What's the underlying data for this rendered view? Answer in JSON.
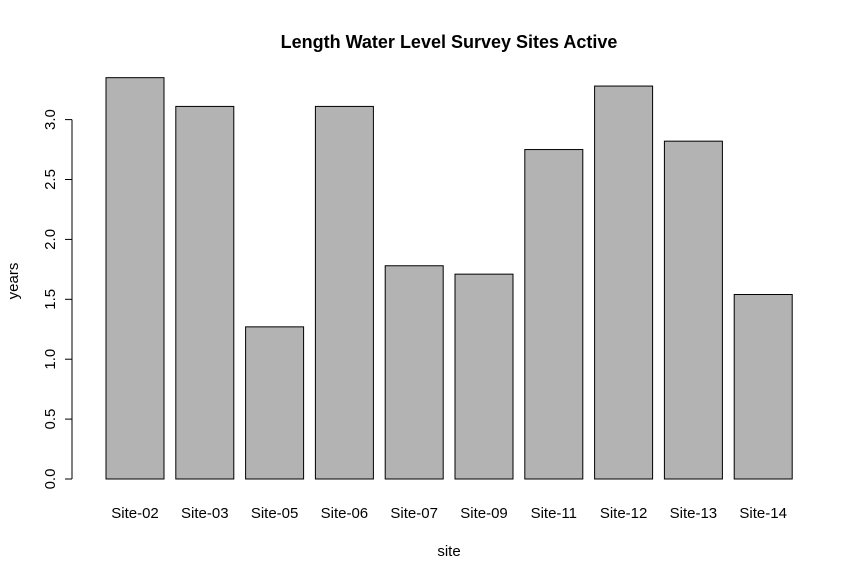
{
  "chart_data": {
    "type": "bar",
    "title": "Length Water Level Survey Sites Active",
    "xlabel": "site",
    "ylabel": "years",
    "categories": [
      "Site-02",
      "Site-03",
      "Site-05",
      "Site-06",
      "Site-07",
      "Site-09",
      "Site-11",
      "Site-12",
      "Site-13",
      "Site-14"
    ],
    "values": [
      3.35,
      3.11,
      1.27,
      3.11,
      1.78,
      1.71,
      2.75,
      3.28,
      2.82,
      1.54
    ],
    "yticks": [
      "0.0",
      "0.5",
      "1.0",
      "1.5",
      "2.0",
      "2.5",
      "3.0"
    ],
    "ylim": [
      0,
      3.35
    ],
    "bar_color": "#b3b3b3",
    "grid": false,
    "legend": "none"
  }
}
